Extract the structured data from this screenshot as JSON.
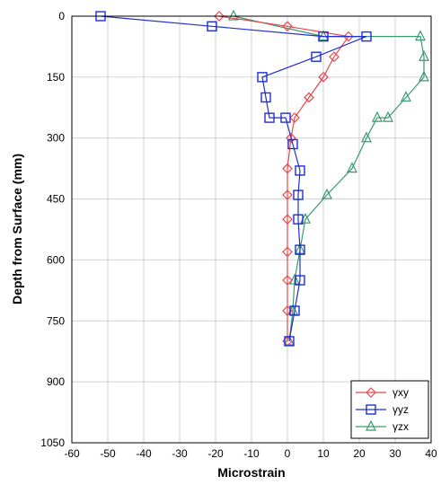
{
  "chart_data": {
    "type": "line",
    "title": "",
    "xlabel": "Microstrain",
    "ylabel": "Depth from Surface (mm)",
    "xlim": [
      -60,
      40
    ],
    "ylim": [
      0,
      1050
    ],
    "y_inverted": true,
    "x_ticks": [
      -60,
      -50,
      -40,
      -30,
      -20,
      -10,
      0,
      10,
      20,
      30,
      40
    ],
    "y_ticks": [
      0,
      150,
      300,
      450,
      600,
      750,
      900,
      1050
    ],
    "grid": true,
    "legend_position": "bottom-right",
    "series": [
      {
        "name": "γxy",
        "color": "#e8474a",
        "marker": "diamond",
        "points": [
          {
            "x": -19,
            "y": 0
          },
          {
            "x": 0,
            "y": 25
          },
          {
            "x": 17,
            "y": 50
          },
          {
            "x": 13,
            "y": 100
          },
          {
            "x": 10,
            "y": 150
          },
          {
            "x": 6,
            "y": 200
          },
          {
            "x": 2,
            "y": 250
          },
          {
            "x": 1,
            "y": 300
          },
          {
            "x": 0,
            "y": 375
          },
          {
            "x": 0,
            "y": 440
          },
          {
            "x": 0,
            "y": 500
          },
          {
            "x": 0,
            "y": 580
          },
          {
            "x": 0,
            "y": 650
          },
          {
            "x": 0,
            "y": 725
          },
          {
            "x": 0,
            "y": 800
          }
        ]
      },
      {
        "name": "γyz",
        "color": "#1f2fd1",
        "marker": "square",
        "points": [
          {
            "x": -52,
            "y": 0
          },
          {
            "x": -21,
            "y": 25
          },
          {
            "x": 10,
            "y": 50
          },
          {
            "x": 22,
            "y": 50
          },
          {
            "x": 8,
            "y": 100
          },
          {
            "x": -7,
            "y": 150
          },
          {
            "x": -6,
            "y": 200
          },
          {
            "x": -5,
            "y": 250
          },
          {
            "x": -0.5,
            "y": 250
          },
          {
            "x": 1.5,
            "y": 315
          },
          {
            "x": 3.5,
            "y": 380
          },
          {
            "x": 3,
            "y": 440
          },
          {
            "x": 3,
            "y": 500
          },
          {
            "x": 3.5,
            "y": 575
          },
          {
            "x": 3.5,
            "y": 650
          },
          {
            "x": 2,
            "y": 725
          },
          {
            "x": 0.5,
            "y": 800
          }
        ]
      },
      {
        "name": "γzx",
        "color": "#3a9a6e",
        "marker": "triangle",
        "points": [
          {
            "x": -15,
            "y": 0
          },
          {
            "x": 10,
            "y": 50
          },
          {
            "x": 37,
            "y": 50
          },
          {
            "x": 38,
            "y": 100
          },
          {
            "x": 38,
            "y": 150
          },
          {
            "x": 33,
            "y": 200
          },
          {
            "x": 28,
            "y": 250
          },
          {
            "x": 25,
            "y": 250
          },
          {
            "x": 22,
            "y": 300
          },
          {
            "x": 18,
            "y": 375
          },
          {
            "x": 11,
            "y": 440
          },
          {
            "x": 5,
            "y": 500
          },
          {
            "x": 3.5,
            "y": 575
          },
          {
            "x": 2,
            "y": 650
          },
          {
            "x": 1.5,
            "y": 725
          },
          {
            "x": 0.5,
            "y": 800
          }
        ]
      }
    ]
  }
}
